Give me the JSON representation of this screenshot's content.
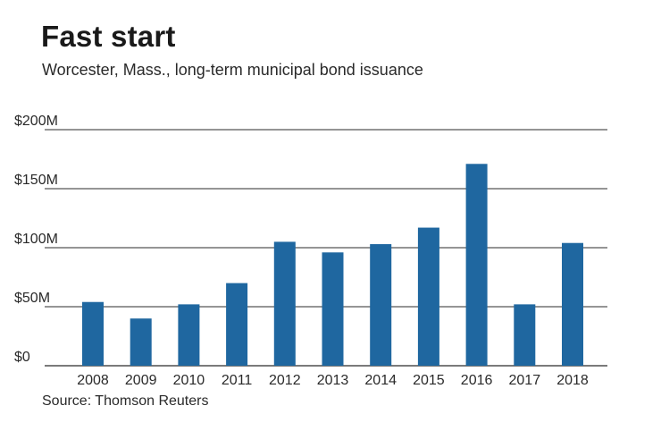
{
  "header": {
    "title": "Fast start",
    "subtitle": "Worcester, Mass., long-term municipal bond issuance"
  },
  "footer": {
    "source": "Source: Thomson Reuters"
  },
  "colors": {
    "bar": "#1f67a0",
    "grid": "#2b2b2b"
  },
  "chart_data": {
    "type": "bar",
    "title": "Fast start",
    "subtitle": "Worcester, Mass., long-term municipal bond issuance",
    "xlabel": "",
    "ylabel": "",
    "unit": "$M",
    "ylim": [
      0,
      200
    ],
    "yticks": [
      0,
      50,
      100,
      150,
      200
    ],
    "ytick_labels": [
      "$0",
      "$50M",
      "$100M",
      "$150M",
      "$200M"
    ],
    "grid": true,
    "legend": "none",
    "categories": [
      "2008",
      "2009",
      "2010",
      "2011",
      "2012",
      "2013",
      "2014",
      "2015",
      "2016",
      "2017",
      "2018"
    ],
    "values": [
      54,
      40,
      52,
      70,
      105,
      96,
      103,
      117,
      171,
      52,
      104
    ]
  }
}
